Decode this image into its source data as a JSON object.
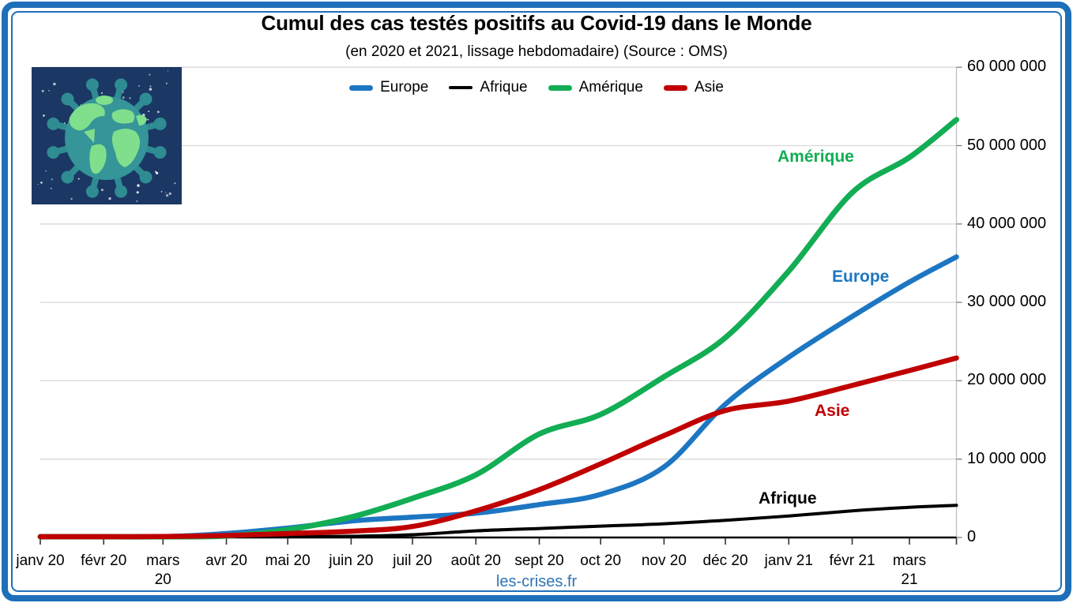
{
  "header": {
    "title": "Cumul des cas testés positifs au Covid-19 dans le Monde",
    "subtitle": "(en 2020 et 2021, lissage hebdomadaire) (Source : OMS)"
  },
  "footer": {
    "site": "les-crises.fr"
  },
  "colors": {
    "frame": "#1E6FBA",
    "footer_link": "#2E74B5",
    "grid": "#D9D9D9",
    "y_axis": "#BFBFBF",
    "x_axis": "#000000",
    "logo_background": "#1B3764",
    "logo_virus": "#2E8C92",
    "logo_continents": "#7FDF8C"
  },
  "chart_data": {
    "type": "line",
    "title": "Cumul des cas testés positifs au Covid-19 dans le Monde",
    "subtitle": "(en 2020 et 2021, lissage hebdomadaire) (Source : OMS)",
    "legend_position": "top-center",
    "grid": "horizontal",
    "xlabel": "",
    "ylabel": "",
    "x_unit": "days since 2020-01-01",
    "x_days": [
      0,
      31,
      60,
      91,
      121,
      152,
      182,
      213,
      244,
      274,
      305,
      335,
      366,
      397,
      425,
      448
    ],
    "x_tick_labels": [
      "janv 20",
      "févr 20",
      "mars\n20",
      "avr 20",
      "mai 20",
      "juin 20",
      "juil 20",
      "août 20",
      "sept 20",
      "oct 20",
      "nov 20",
      "déc 20",
      "janv 21",
      "févr 21",
      "mars\n21"
    ],
    "ylim": [
      0,
      60000000
    ],
    "y_tick_values": [
      0,
      10000000,
      20000000,
      30000000,
      40000000,
      50000000,
      60000000
    ],
    "y_tick_labels": [
      "0",
      "10 000 000",
      "20 000 000",
      "30 000 000",
      "40 000 000",
      "50 000 000",
      "60 000 000"
    ],
    "series": [
      {
        "name": "Europe",
        "color": "#1D76C2",
        "values_millions": [
          0,
          0.01,
          0.06,
          0.5,
          1.2,
          2.1,
          2.6,
          3.1,
          4.2,
          5.5,
          9.0,
          17.0,
          23.0,
          28.2,
          32.6,
          35.8
        ]
      },
      {
        "name": "Afrique",
        "color": "#000000",
        "values_millions": [
          0,
          0,
          0.01,
          0.05,
          0.09,
          0.15,
          0.35,
          0.85,
          1.15,
          1.45,
          1.75,
          2.2,
          2.75,
          3.4,
          3.85,
          4.1
        ]
      },
      {
        "name": "Amérique",
        "color": "#12AD54",
        "values_millions": [
          0,
          0,
          0.01,
          0.2,
          1.0,
          2.6,
          5.0,
          8.0,
          13.2,
          15.7,
          20.5,
          25.5,
          34.0,
          44.0,
          48.5,
          53.3
        ]
      },
      {
        "name": "Asie",
        "color": "#C00000",
        "values_millions": [
          0.03,
          0.08,
          0.12,
          0.25,
          0.5,
          0.8,
          1.4,
          3.4,
          6.1,
          9.4,
          13.0,
          16.2,
          17.4,
          19.4,
          21.3,
          22.9
        ]
      }
    ]
  }
}
